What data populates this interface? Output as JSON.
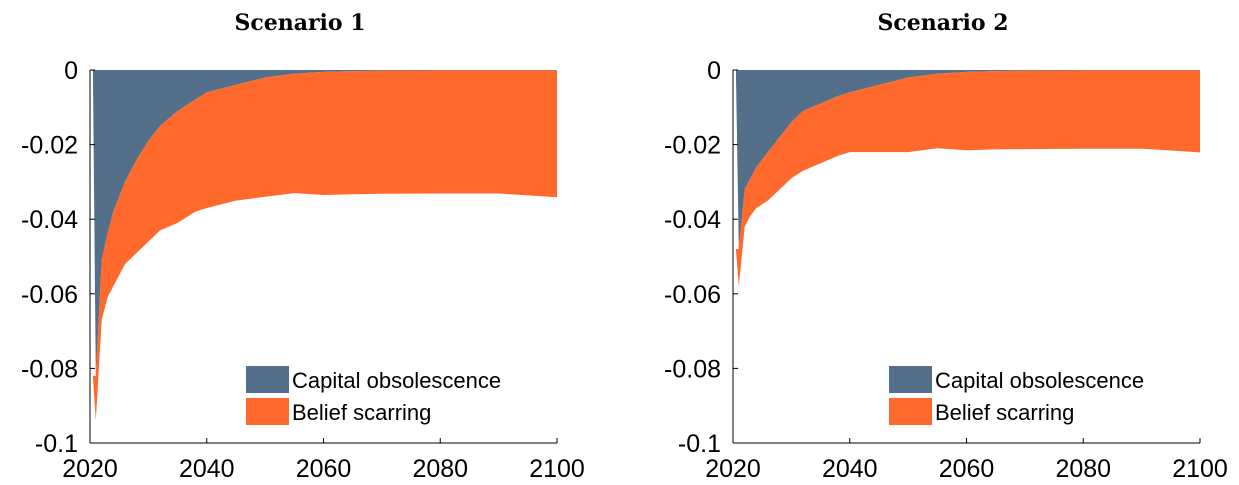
{
  "chart_data": [
    {
      "type": "area",
      "title": "Scenario 1",
      "xlabel": "",
      "ylabel": "",
      "xlim": [
        2020,
        2100
      ],
      "ylim": [
        -0.1,
        0
      ],
      "xticks": [
        2020,
        2040,
        2060,
        2080,
        2100
      ],
      "yticks": [
        0,
        -0.02,
        -0.04,
        -0.06,
        -0.08,
        -0.1
      ],
      "xtick_labels": [
        "2020",
        "2040",
        "2060",
        "2080",
        "2100"
      ],
      "ytick_labels": [
        "0",
        "-0.02",
        "-0.04",
        "-0.06",
        "-0.08",
        "-0.1"
      ],
      "stacked": true,
      "grid": false,
      "legend_position": "bottom-right",
      "x": [
        2021,
        2022,
        2023,
        2024,
        2025,
        2026,
        2028,
        2030,
        2032,
        2035,
        2038,
        2040,
        2045,
        2050,
        2055,
        2060,
        2065,
        2070,
        2080,
        2090,
        2100
      ],
      "series": [
        {
          "name": "Capital obsolescence",
          "color": "#536f8a",
          "values": [
            -0.082,
            -0.051,
            -0.044,
            -0.038,
            -0.034,
            -0.03,
            -0.024,
            -0.019,
            -0.015,
            -0.011,
            -0.008,
            -0.006,
            -0.004,
            -0.002,
            -0.001,
            -0.0005,
            -0.0003,
            -0.0002,
            -0.0001,
            -0.0001,
            -0.0001
          ]
        },
        {
          "name": "Belief scarring",
          "color": "#ff6a2c",
          "values": [
            -0.012,
            -0.016,
            -0.017,
            -0.02,
            -0.021,
            -0.022,
            -0.025,
            -0.027,
            -0.028,
            -0.03,
            -0.03,
            -0.031,
            -0.031,
            -0.032,
            -0.032,
            -0.033,
            -0.033,
            -0.033,
            -0.033,
            -0.033,
            -0.034
          ]
        }
      ]
    },
    {
      "type": "area",
      "title": "Scenario 2",
      "xlabel": "",
      "ylabel": "",
      "xlim": [
        2020,
        2100
      ],
      "ylim": [
        -0.1,
        0
      ],
      "xticks": [
        2020,
        2040,
        2060,
        2080,
        2100
      ],
      "yticks": [
        0,
        -0.02,
        -0.04,
        -0.06,
        -0.08,
        -0.1
      ],
      "xtick_labels": [
        "2020",
        "2040",
        "2060",
        "2080",
        "2100"
      ],
      "ytick_labels": [
        "0",
        "-0.02",
        "-0.04",
        "-0.06",
        "-0.08",
        "-0.1"
      ],
      "stacked": true,
      "grid": false,
      "legend_position": "bottom-right",
      "x": [
        2021,
        2022,
        2023,
        2024,
        2025,
        2026,
        2028,
        2030,
        2032,
        2035,
        2038,
        2040,
        2045,
        2050,
        2055,
        2060,
        2065,
        2070,
        2080,
        2090,
        2100
      ],
      "series": [
        {
          "name": "Capital obsolescence",
          "color": "#536f8a",
          "values": [
            -0.048,
            -0.032,
            -0.029,
            -0.026,
            -0.024,
            -0.022,
            -0.018,
            -0.014,
            -0.011,
            -0.009,
            -0.007,
            -0.006,
            -0.004,
            -0.002,
            -0.001,
            -0.0005,
            -0.0003,
            -0.0002,
            -0.0001,
            -0.0001,
            -0.0001
          ]
        },
        {
          "name": "Belief scarring",
          "color": "#ff6a2c",
          "values": [
            -0.01,
            -0.01,
            -0.01,
            -0.011,
            -0.012,
            -0.013,
            -0.014,
            -0.015,
            -0.016,
            -0.016,
            -0.016,
            -0.016,
            -0.018,
            -0.02,
            -0.02,
            -0.021,
            -0.021,
            -0.021,
            -0.021,
            -0.021,
            -0.022
          ]
        }
      ]
    }
  ]
}
